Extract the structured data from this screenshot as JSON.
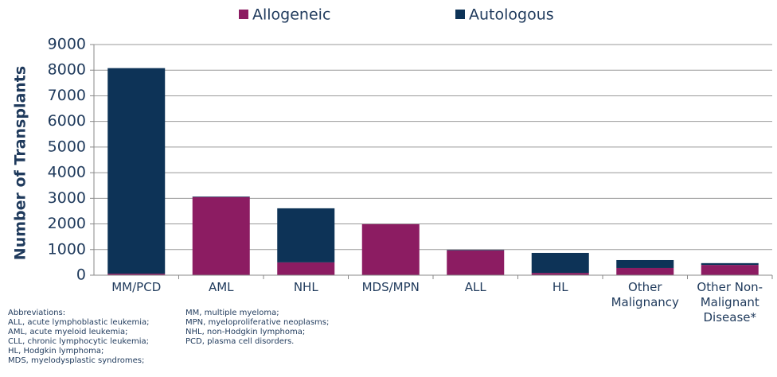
{
  "chart_data": {
    "type": "stacked_bar",
    "ylabel": "Number of Transplants",
    "categories": [
      "MM/PCD",
      "AML",
      "NHL",
      "MDS/MPN",
      "ALL",
      "HL",
      "Other Malignancy",
      "Other Non-Malignant Disease*"
    ],
    "series": [
      {
        "name": "Allogeneic",
        "color": "#8c1c62",
        "values": [
          60,
          3050,
          500,
          1990,
          970,
          90,
          280,
          400
        ]
      },
      {
        "name": "Autologous",
        "color": "#0d3357",
        "values": [
          8020,
          20,
          2110,
          0,
          20,
          780,
          310,
          70
        ]
      }
    ],
    "ylim": [
      0,
      9000
    ],
    "yticks": [
      0,
      1000,
      2000,
      3000,
      4000,
      5000,
      6000,
      7000,
      8000,
      9000
    ],
    "grid": true,
    "notes": {
      "left": [
        "Abbreviations:",
        "ALL, acute lymphoblastic leukemia;",
        "AML, acute myeloid leukemia;",
        "CLL, chronic lymphocytic leukemia;",
        "HL, Hodgkin lymphoma;",
        "MDS, myelodysplastic syndromes;"
      ],
      "right": [
        "MM, multiple myeloma;",
        "MPN, myeloproliferative neoplasms;",
        "NHL, non-Hodgkin lymphoma;",
        "PCD, plasma cell disorders."
      ]
    }
  }
}
